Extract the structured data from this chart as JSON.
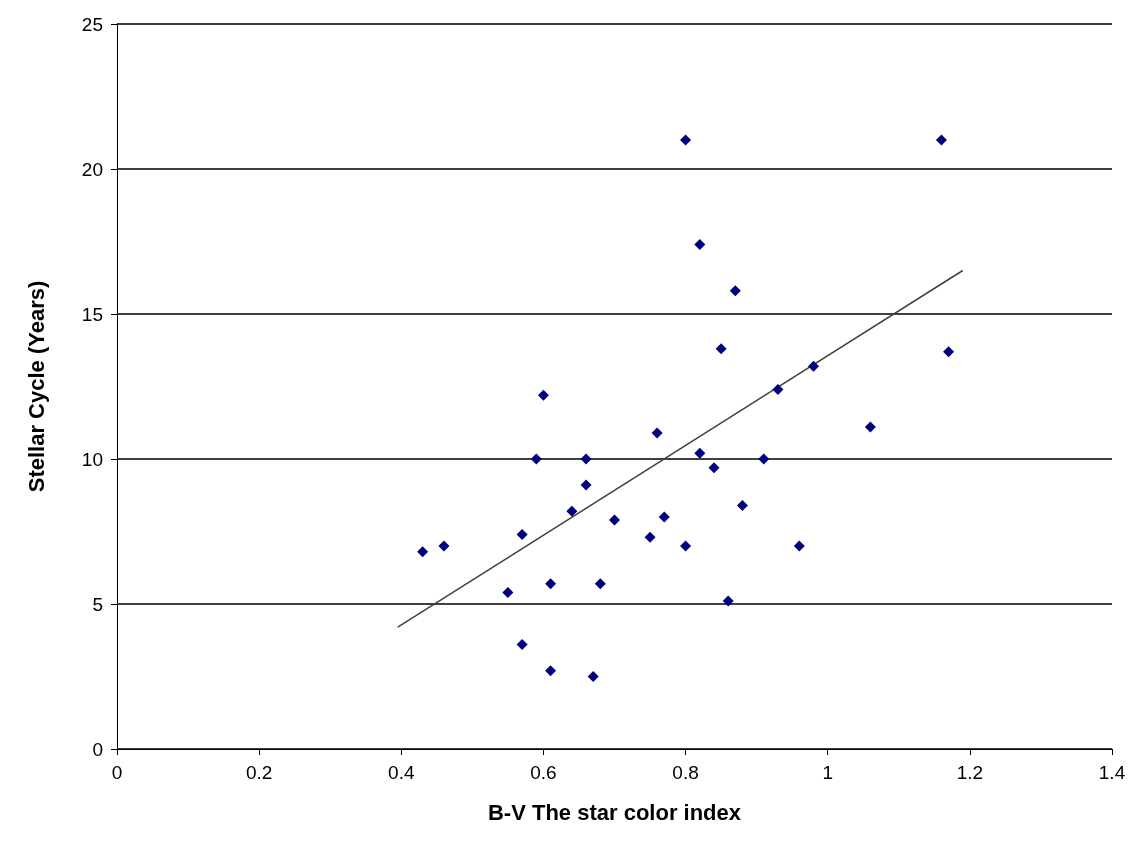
{
  "chart_data": {
    "type": "scatter",
    "xlabel": "B-V The star color index",
    "ylabel": "Stellar Cycle (Years)",
    "xlim": [
      0,
      1.4
    ],
    "xticks": [
      0,
      0.2,
      0.4,
      0.6,
      0.8,
      1,
      1.2,
      1.4
    ],
    "ylim": [
      0,
      25
    ],
    "yticks": [
      0,
      5,
      10,
      15,
      20,
      25
    ],
    "grid": "y",
    "marker": "diamond",
    "series": [
      {
        "color": "#000080",
        "x": [
          0.43,
          0.46,
          0.55,
          0.57,
          0.57,
          0.59,
          0.6,
          0.61,
          0.61,
          0.64,
          0.66,
          0.66,
          0.67,
          0.68,
          0.7,
          0.75,
          0.76,
          0.77,
          0.8,
          0.8,
          0.82,
          0.82,
          0.84,
          0.85,
          0.86,
          0.87,
          0.88,
          0.91,
          0.93,
          0.96,
          0.98,
          1.06,
          1.16,
          1.17
        ],
        "values": [
          6.8,
          7.0,
          5.4,
          7.4,
          3.6,
          10.0,
          12.2,
          2.7,
          5.7,
          8.2,
          10.0,
          9.1,
          2.5,
          5.7,
          7.9,
          7.3,
          10.9,
          8.0,
          7.0,
          21.0,
          17.4,
          10.2,
          9.7,
          13.8,
          5.1,
          15.8,
          8.4,
          10.0,
          12.4,
          7.0,
          13.2,
          11.1,
          21.0,
          13.7
        ]
      },
      {
        "type": "line",
        "color": "#404040",
        "marker": "none",
        "x": [
          0.395,
          1.19
        ],
        "values": [
          4.2,
          16.5
        ]
      }
    ]
  }
}
